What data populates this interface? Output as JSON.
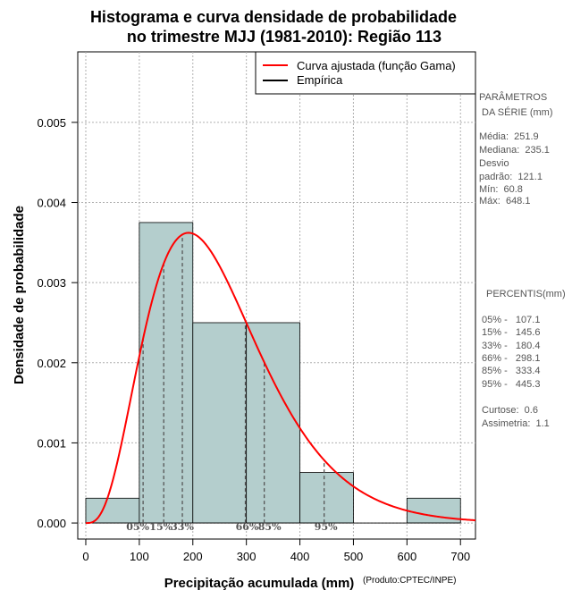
{
  "chart_data": {
    "type": "bar",
    "title_line1": "Histograma e curva densidade de probabilidade",
    "title_line2": "no trimestre MJJ (1981-2010): Região 113",
    "xlabel": "Precipitação acumulada (mm)",
    "ylabel": "Densidade de probabilidade",
    "credit": "(Produto:CPTEC/INPE)",
    "xlim": [
      -15,
      728
    ],
    "ylim": [
      -0.0002,
      0.00588
    ],
    "x_ticks": [
      0,
      100,
      200,
      300,
      400,
      500,
      600,
      700
    ],
    "x_tick_labels": [
      "0",
      "100",
      "200",
      "300",
      "400",
      "500",
      "600",
      "700"
    ],
    "y_ticks": [
      0,
      0.001,
      0.002,
      0.003,
      0.004,
      0.005
    ],
    "y_tick_labels": [
      "0.000",
      "0.001",
      "0.002",
      "0.003",
      "0.004",
      "0.005"
    ],
    "grid": true,
    "histogram": {
      "bin_edges": [
        0,
        100,
        200,
        300,
        400,
        500,
        600,
        700
      ],
      "densities": [
        0.00031,
        0.00375,
        0.0025,
        0.0025,
        0.00063,
        0,
        0.00031
      ],
      "fill_color": "#b4cecd"
    },
    "fitted_curve": {
      "name": "Curva ajustada (função Gama)",
      "color": "#ff0000",
      "distribution": "gamma",
      "shape": 4.2,
      "scale": 60
    },
    "percentiles": [
      {
        "label": "05%",
        "value": 107.1
      },
      {
        "label": "15%",
        "value": 145.6
      },
      {
        "label": "33%",
        "value": 180.4
      },
      {
        "label": "66%",
        "value": 298.1
      },
      {
        "label": "85%",
        "value": 333.4
      },
      {
        "label": "95%",
        "value": 445.3
      }
    ],
    "legend": {
      "position": "top-right",
      "entries": [
        {
          "label": "Curva ajustada (função Gama)",
          "color": "#ff0000"
        },
        {
          "label": "Empírica",
          "color": "#000000"
        }
      ]
    }
  },
  "stats_panel": {
    "heading1": "PARÂMETROS",
    "heading2": " DA SÉRIE (mm)",
    "lines": [
      "Média:  251.9",
      "Mediana:  235.1",
      "Desvio",
      "padrão:  121.1",
      "Mín:  60.8",
      "Máx:  648.1"
    ]
  },
  "percentis_panel": {
    "heading": "PERCENTIS(mm)",
    "lines": [
      "05% -   107.1",
      "15% -   145.6",
      "33% -   180.4",
      "66% -   298.1",
      "85% -   333.4",
      "95% -   445.3"
    ],
    "extra_lines": [
      "Curtose:  0.6",
      "Assimetria:  1.1"
    ]
  }
}
